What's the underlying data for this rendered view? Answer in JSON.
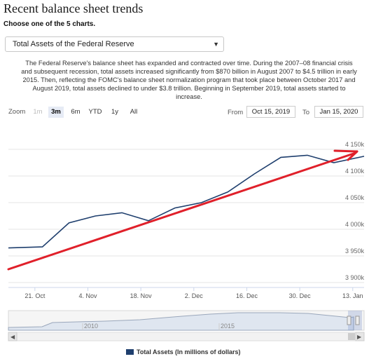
{
  "header": {
    "title": "Recent balance sheet trends",
    "subtitle": "Choose one of the 5 charts."
  },
  "selector": {
    "value": "Total Assets of the Federal Reserve",
    "icon": "chevron-down-icon"
  },
  "description": "The Federal Reserve's balance sheet has expanded and contracted over time. During the 2007–08 financial crisis and subsequent recession, total assets increased significantly from $870 billion in August 2007 to $4.5 trillion in early 2015. Then, reflecting the FOMC's balance sheet normalization program that took place between October 2017 and August 2019, total assets declined to under $3.8 trillion. Beginning in September 2019, total assets started to increase.",
  "range_selector": {
    "zoom_label": "Zoom",
    "buttons": [
      "1m",
      "3m",
      "6m",
      "YTD",
      "1y",
      "All"
    ],
    "active": "3m",
    "disabled": [
      "1m"
    ],
    "from_label": "From",
    "from_value": "Oct 15, 2019",
    "to_label": "To",
    "to_value": "Jan 15, 2020"
  },
  "chart_data": {
    "type": "line",
    "series": [
      {
        "name": "Total Assets (In millions of dollars)",
        "color": "#1f3f6e",
        "x": [
          "2019-10-16",
          "2019-10-23",
          "2019-10-30",
          "2019-11-06",
          "2019-11-13",
          "2019-11-20",
          "2019-11-27",
          "2019-12-04",
          "2019-12-11",
          "2019-12-18",
          "2019-12-25",
          "2020-01-01",
          "2020-01-08",
          "2020-01-15"
        ],
        "y": [
          3965000,
          3967000,
          4012000,
          4025000,
          4031000,
          4016000,
          4040000,
          4050000,
          4070000,
          4104000,
          4135000,
          4139000,
          4125000,
          4137000
        ]
      }
    ],
    "xticks": [
      "21. Oct",
      "4. Nov",
      "18. Nov",
      "2. Dec",
      "16. Dec",
      "30. Dec",
      "13. Jan"
    ],
    "yticks": [
      "3 900k",
      "3 950k",
      "4 000k",
      "4 050k",
      "4 100k",
      "4 150k"
    ],
    "ylim": [
      3900000,
      4150000
    ],
    "grid": true,
    "legend_position": "bottom-center",
    "annotation": {
      "type": "arrow",
      "color": "#e0202a",
      "description": "red hand-drawn arrow pointing toward the latest value"
    },
    "navigator": {
      "labels": [
        "2010",
        "2015"
      ]
    }
  }
}
